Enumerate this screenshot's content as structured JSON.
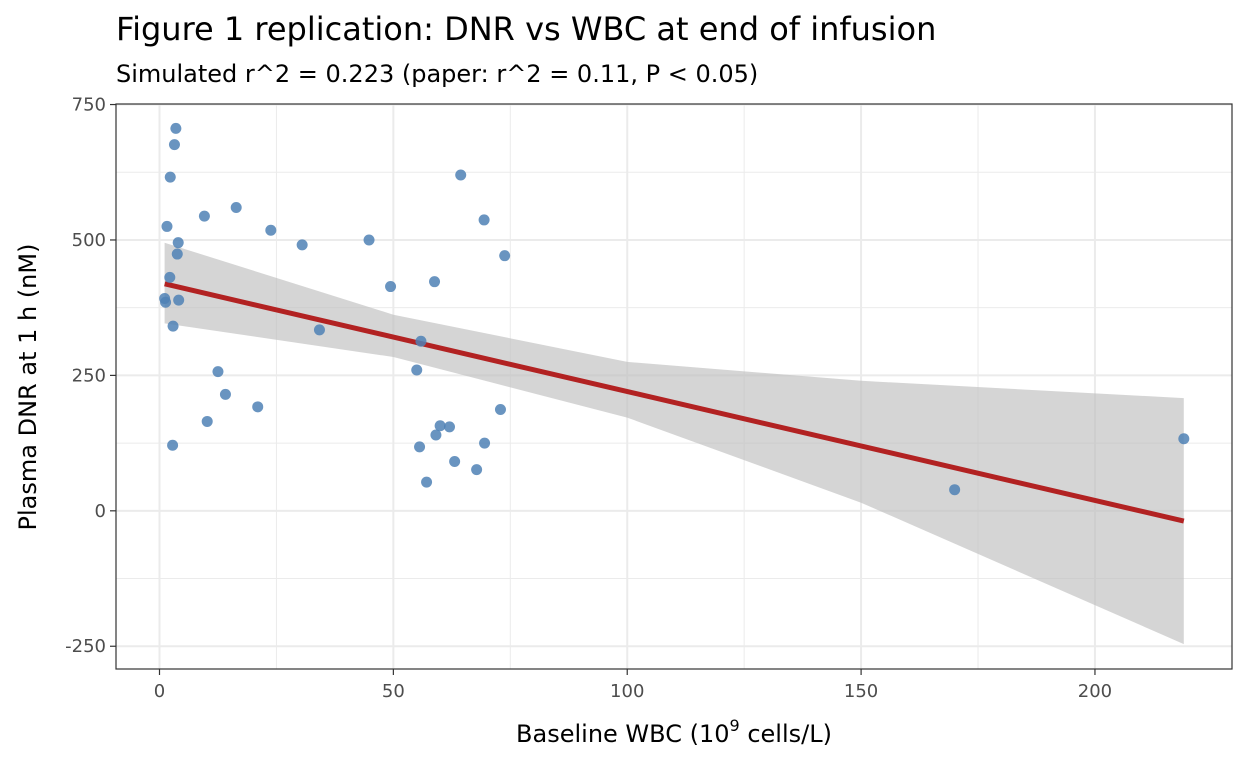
{
  "chart_data": {
    "type": "scatter",
    "title": "Figure 1 replication: DNR vs WBC at end of infusion",
    "subtitle": "Simulated r^2 = 0.223 (paper: r^2 = 0.11, P < 0.05)",
    "xlabel": "Baseline WBC (10^9 cells/L)",
    "xlabel_parts": {
      "before": "Baseline WBC (10",
      "superscript": "9",
      "after": " cells/L)"
    },
    "ylabel": "Plasma DNR at 1 h (nM)",
    "xlim": [
      -9.3,
      229.3
    ],
    "ylim": [
      -292,
      751
    ],
    "x_ticks": [
      0,
      50,
      100,
      150,
      200
    ],
    "x_tick_labels": [
      "0",
      "50",
      "100",
      "150",
      "200"
    ],
    "y_ticks": [
      -250,
      0,
      250,
      500,
      750
    ],
    "y_tick_labels": [
      "-250",
      "0",
      "250",
      "500",
      "750"
    ],
    "grid": true,
    "colors": {
      "points": "#4F81B5",
      "fit_line": "#B22222",
      "ribbon": "#BEBEBE",
      "grid": "#EBEBEB",
      "border": "#333333"
    },
    "points": [
      {
        "x": 3.5,
        "y": 706
      },
      {
        "x": 3.2,
        "y": 676
      },
      {
        "x": 2.3,
        "y": 616
      },
      {
        "x": 16.4,
        "y": 560
      },
      {
        "x": 9.6,
        "y": 544
      },
      {
        "x": 1.6,
        "y": 525
      },
      {
        "x": 23.8,
        "y": 518
      },
      {
        "x": 4.0,
        "y": 495
      },
      {
        "x": 30.5,
        "y": 491
      },
      {
        "x": 3.8,
        "y": 474
      },
      {
        "x": 2.2,
        "y": 431
      },
      {
        "x": 1.1,
        "y": 392
      },
      {
        "x": 1.3,
        "y": 385
      },
      {
        "x": 4.1,
        "y": 389
      },
      {
        "x": 2.9,
        "y": 341
      },
      {
        "x": 12.5,
        "y": 257
      },
      {
        "x": 14.1,
        "y": 215
      },
      {
        "x": 21.0,
        "y": 192
      },
      {
        "x": 10.2,
        "y": 165
      },
      {
        "x": 2.8,
        "y": 121
      },
      {
        "x": 34.2,
        "y": 334
      },
      {
        "x": 44.8,
        "y": 500
      },
      {
        "x": 49.4,
        "y": 414
      },
      {
        "x": 58.8,
        "y": 423
      },
      {
        "x": 55.9,
        "y": 313
      },
      {
        "x": 55.0,
        "y": 260
      },
      {
        "x": 64.4,
        "y": 620
      },
      {
        "x": 69.4,
        "y": 537
      },
      {
        "x": 73.8,
        "y": 471
      },
      {
        "x": 72.9,
        "y": 187
      },
      {
        "x": 69.5,
        "y": 125
      },
      {
        "x": 60.0,
        "y": 157
      },
      {
        "x": 62.0,
        "y": 155
      },
      {
        "x": 59.1,
        "y": 140
      },
      {
        "x": 55.6,
        "y": 118
      },
      {
        "x": 63.1,
        "y": 91
      },
      {
        "x": 67.8,
        "y": 76
      },
      {
        "x": 57.1,
        "y": 53
      },
      {
        "x": 170.0,
        "y": 39
      },
      {
        "x": 219.0,
        "y": 133
      }
    ],
    "fit_line": {
      "x": [
        1.1,
        219.0
      ],
      "y": [
        419,
        -19
      ]
    },
    "confidence_band": [
      {
        "x": 1.1,
        "lower": 346,
        "upper": 495
      },
      {
        "x": 50,
        "lower": 284,
        "upper": 362
      },
      {
        "x": 100,
        "lower": 172,
        "upper": 275
      },
      {
        "x": 150,
        "lower": 15,
        "upper": 240
      },
      {
        "x": 219.0,
        "lower": -246,
        "upper": 208
      }
    ]
  }
}
